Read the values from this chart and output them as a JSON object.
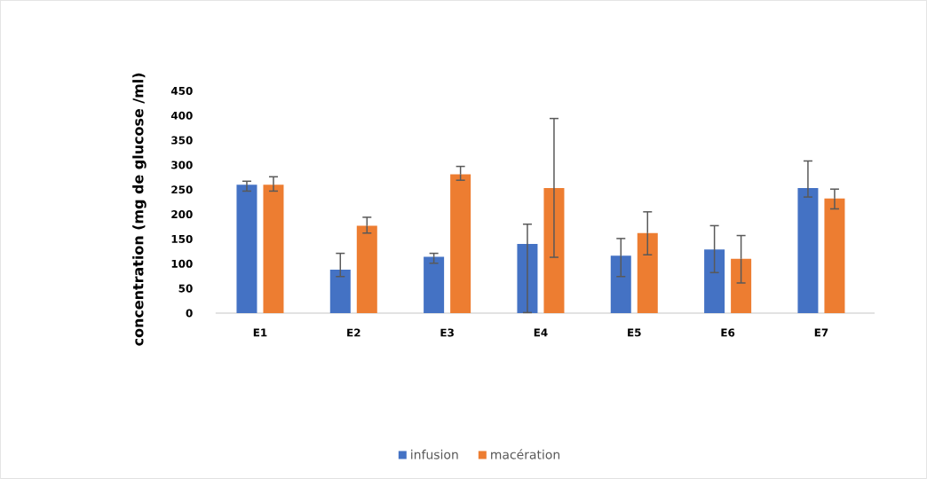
{
  "chart_data": {
    "type": "bar",
    "ylabel": "concentration  (mg de glucose /ml)",
    "categories": [
      "E1",
      "E2",
      "E3",
      "E4",
      "E5",
      "E6",
      "E7"
    ],
    "series": [
      {
        "name": "infusion",
        "color": "#4472c4",
        "values": [
          260,
          88,
          114,
          140,
          116,
          129,
          253
        ],
        "errors": [
          [
            247,
            267
          ],
          [
            74,
            121
          ],
          [
            101,
            121
          ],
          [
            1,
            180
          ],
          [
            74,
            151
          ],
          [
            82,
            177
          ],
          [
            235,
            308
          ]
        ]
      },
      {
        "name": "macération",
        "color": "#ed7d31",
        "values": [
          260,
          177,
          281,
          253,
          162,
          110,
          232
        ],
        "errors": [
          [
            247,
            276
          ],
          [
            162,
            194
          ],
          [
            269,
            297
          ],
          [
            113,
            394
          ],
          [
            118,
            205
          ],
          [
            61,
            157
          ],
          [
            211,
            251
          ]
        ]
      }
    ],
    "ylim": [
      0,
      450
    ],
    "yticks": [
      0,
      50,
      100,
      150,
      200,
      250,
      300,
      350,
      400,
      450
    ],
    "grid": false,
    "legend": "bottom"
  }
}
